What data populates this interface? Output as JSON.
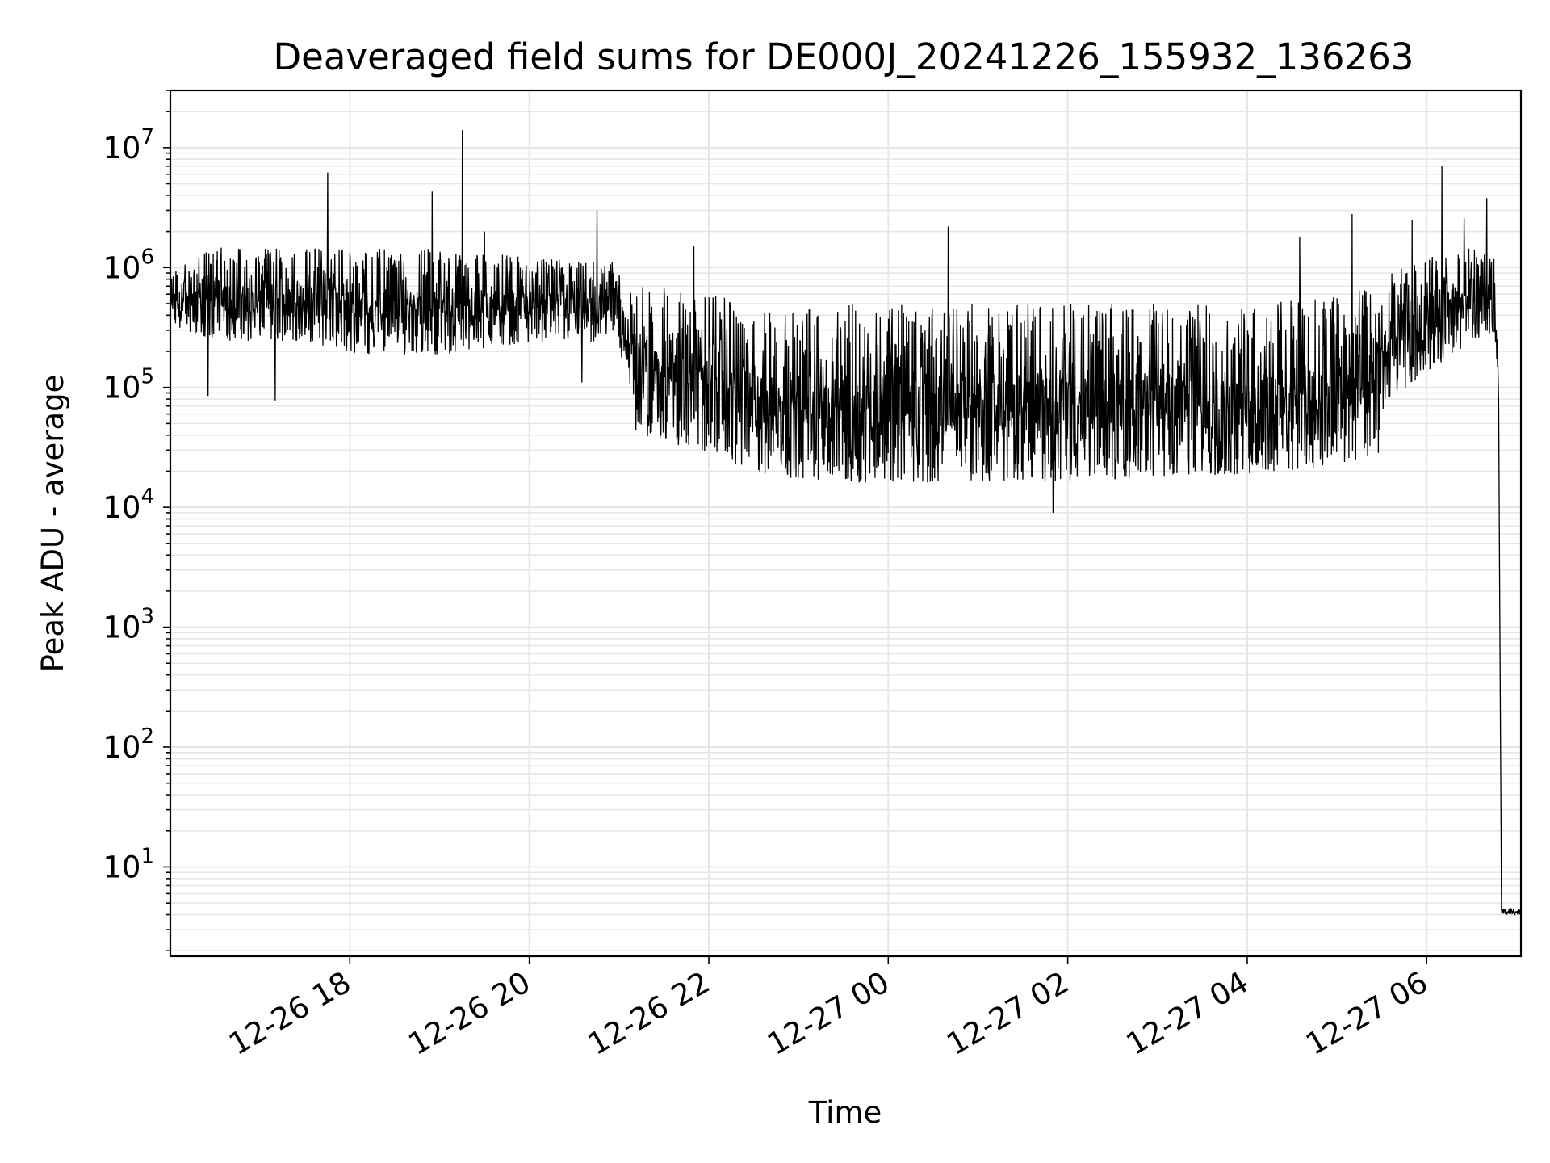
{
  "chart_data": {
    "type": "line",
    "title": "Deaveraged field sums for DE000J_20241226_155932_136263",
    "xlabel": "Time",
    "ylabel": "Peak ADU - average",
    "yscale": "log",
    "grid": true,
    "xlim": [
      "2024-12-26 16:00",
      "2024-12-27 07:03"
    ],
    "ylim": [
      1.8,
      30000000
    ],
    "x_ticks": [
      "12-26 18",
      "12-26 20",
      "12-26 22",
      "12-27 00",
      "12-27 02",
      "12-27 04",
      "12-27 06"
    ],
    "y_ticks": [
      {
        "base": "10",
        "exp": "1"
      },
      {
        "base": "10",
        "exp": "2"
      },
      {
        "base": "10",
        "exp": "3"
      },
      {
        "base": "10",
        "exp": "4"
      },
      {
        "base": "10",
        "exp": "5"
      },
      {
        "base": "10",
        "exp": "6"
      },
      {
        "base": "10",
        "exp": "7"
      }
    ],
    "series": [
      {
        "color": "#000000",
        "envelope": [
          {
            "x": "2024-12-26 16:00",
            "low": 300000,
            "high": 900000
          },
          {
            "x": "2024-12-26 16:30",
            "low": 200000,
            "high": 1500000
          },
          {
            "x": "2024-12-26 17:00",
            "low": 200000,
            "high": 1500000
          },
          {
            "x": "2024-12-26 17:30",
            "low": 200000,
            "high": 1500000
          },
          {
            "x": "2024-12-26 18:00",
            "low": 150000,
            "high": 1500000
          },
          {
            "x": "2024-12-26 19:00",
            "low": 150000,
            "high": 1500000
          },
          {
            "x": "2024-12-26 20:00",
            "low": 200000,
            "high": 1200000
          },
          {
            "x": "2024-12-26 21:00",
            "low": 200000,
            "high": 1100000
          },
          {
            "x": "2024-12-26 21:10",
            "low": 30000,
            "high": 800000
          },
          {
            "x": "2024-12-26 22:00",
            "low": 20000,
            "high": 600000
          },
          {
            "x": "2024-12-26 22:30",
            "low": 13000,
            "high": 500000
          },
          {
            "x": "2024-12-26 23:30",
            "low": 11000,
            "high": 500000
          },
          {
            "x": "2024-12-27 01:00",
            "low": 11000,
            "high": 500000
          },
          {
            "x": "2024-12-27 03:00",
            "low": 12000,
            "high": 500000
          },
          {
            "x": "2024-12-27 04:00",
            "low": 13000,
            "high": 500000
          },
          {
            "x": "2024-12-27 05:00",
            "low": 15000,
            "high": 600000
          },
          {
            "x": "2024-12-27 05:30",
            "low": 20000,
            "high": 700000
          },
          {
            "x": "2024-12-27 05:35",
            "low": 60000,
            "high": 900000
          },
          {
            "x": "2024-12-27 06:00",
            "low": 100000,
            "high": 1200000
          },
          {
            "x": "2024-12-27 06:30",
            "low": 200000,
            "high": 1500000
          },
          {
            "x": "2024-12-27 06:45",
            "low": 250000,
            "high": 1200000
          },
          {
            "x": "2024-12-27 06:48",
            "low": 80000,
            "high": 300000
          },
          {
            "x": "2024-12-27 06:50",
            "low": 4,
            "high": 4.5
          },
          {
            "x": "2024-12-27 07:03",
            "low": 4,
            "high": 4.5
          }
        ],
        "spikes": [
          {
            "x": "2024-12-26 17:45",
            "y": 6200000
          },
          {
            "x": "2024-12-26 18:55",
            "y": 4300000
          },
          {
            "x": "2024-12-26 19:15",
            "y": 14000000
          },
          {
            "x": "2024-12-26 19:30",
            "y": 2000000
          },
          {
            "x": "2024-12-26 20:45",
            "y": 3000000
          },
          {
            "x": "2024-12-26 21:50",
            "y": 1500000
          },
          {
            "x": "2024-12-27 00:40",
            "y": 2200000
          },
          {
            "x": "2024-12-27 04:35",
            "y": 1800000
          },
          {
            "x": "2024-12-27 05:10",
            "y": 2800000
          },
          {
            "x": "2024-12-27 05:50",
            "y": 2500000
          },
          {
            "x": "2024-12-27 06:10",
            "y": 7000000
          },
          {
            "x": "2024-12-27 06:25",
            "y": 2600000
          },
          {
            "x": "2024-12-27 06:40",
            "y": 3800000
          }
        ],
        "dips": [
          {
            "x": "2024-12-26 16:25",
            "y": 85000
          },
          {
            "x": "2024-12-26 17:10",
            "y": 78000
          },
          {
            "x": "2024-12-26 20:35",
            "y": 110000
          },
          {
            "x": "2024-12-27 01:50",
            "y": 9000
          },
          {
            "x": "2024-12-27 00:20",
            "y": 9500
          },
          {
            "x": "2024-12-26 23:40",
            "y": 9600
          }
        ]
      }
    ]
  }
}
